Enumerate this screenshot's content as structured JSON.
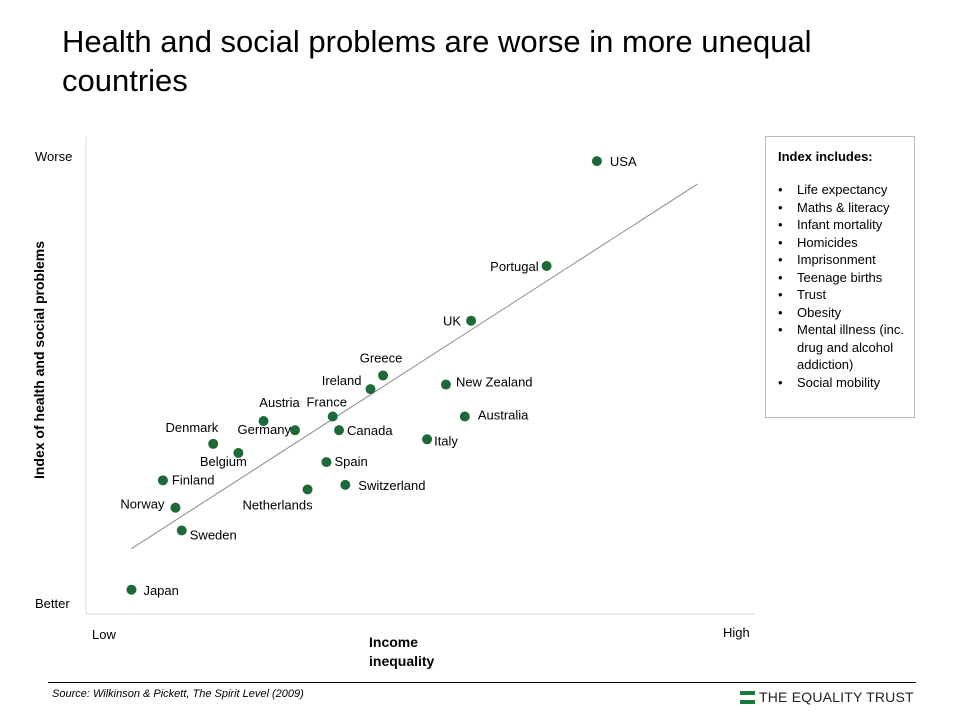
{
  "title": "Health and social problems are worse in more unequal countries",
  "chart_data": {
    "type": "scatter",
    "title": "Health and social problems are worse in more unequal countries",
    "xlabel": "Income inequality",
    "ylabel": "Index of health and social problems",
    "x_tick_labels": {
      "low": "Low",
      "high": "High"
    },
    "y_tick_labels": {
      "top": "Worse",
      "bottom": "Better"
    },
    "xlim": [
      0,
      100
    ],
    "ylim": [
      0,
      100
    ],
    "points": [
      {
        "name": "USA",
        "x": 79,
        "y": 98
      },
      {
        "name": "Portugal",
        "x": 71,
        "y": 75
      },
      {
        "name": "UK",
        "x": 59,
        "y": 63
      },
      {
        "name": "Greece",
        "x": 45,
        "y": 51
      },
      {
        "name": "Ireland",
        "x": 43,
        "y": 48
      },
      {
        "name": "New Zealand",
        "x": 55,
        "y": 49
      },
      {
        "name": "Australia",
        "x": 58,
        "y": 42
      },
      {
        "name": "France",
        "x": 37,
        "y": 42
      },
      {
        "name": "Austria",
        "x": 26,
        "y": 41
      },
      {
        "name": "Germany",
        "x": 31,
        "y": 39
      },
      {
        "name": "Canada",
        "x": 38,
        "y": 39
      },
      {
        "name": "Italy",
        "x": 52,
        "y": 37
      },
      {
        "name": "Denmark",
        "x": 18,
        "y": 36
      },
      {
        "name": "Belgium",
        "x": 22,
        "y": 34
      },
      {
        "name": "Spain",
        "x": 36,
        "y": 32
      },
      {
        "name": "Finland",
        "x": 10,
        "y": 28
      },
      {
        "name": "Switzerland",
        "x": 39,
        "y": 27
      },
      {
        "name": "Netherlands",
        "x": 33,
        "y": 26
      },
      {
        "name": "Norway",
        "x": 12,
        "y": 22
      },
      {
        "name": "Sweden",
        "x": 13,
        "y": 17
      },
      {
        "name": "Japan",
        "x": 5,
        "y": 4
      }
    ],
    "trend_line": {
      "x": [
        5,
        95
      ],
      "y": [
        13,
        93
      ]
    },
    "colors": {
      "point": "#1d6a38",
      "trend": "#8c8c8c",
      "axis": "#d9d9d9"
    }
  },
  "legend": {
    "title": "Index includes:",
    "items": [
      "Life expectancy",
      "Maths & literacy",
      "Infant mortality",
      "Homicides",
      "Imprisonment",
      "Teenage births",
      "Trust",
      "Obesity",
      "Mental illness (inc. drug and alcohol addiction)",
      "Social mobility"
    ]
  },
  "footer": {
    "source": "Source: Wilkinson & Pickett, The Spirit Level (2009)",
    "brand": "THE EQUALITY TRUST",
    "brand_color": "#1a7a3c"
  }
}
